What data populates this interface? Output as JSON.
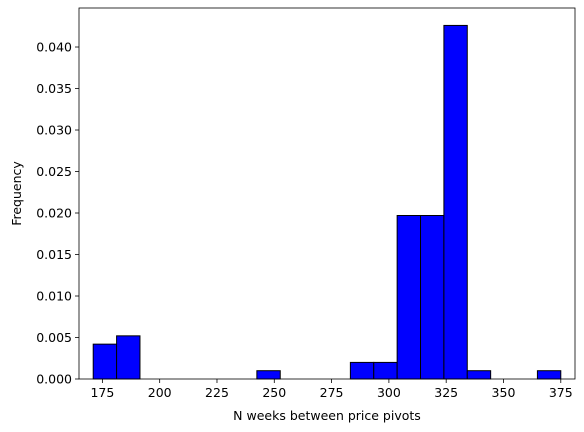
{
  "chart_data": {
    "type": "bar",
    "title": "",
    "xlabel": "N weeks between price pivots",
    "ylabel": "Frequency",
    "xlim": [
      164.8,
      381.2
    ],
    "ylim": [
      0,
      0.0447
    ],
    "x_ticks": [
      175,
      200,
      225,
      250,
      275,
      300,
      325,
      350,
      375
    ],
    "y_ticks": [
      0.0,
      0.005,
      0.01,
      0.015,
      0.02,
      0.025,
      0.03,
      0.035,
      0.04
    ],
    "y_tick_labels": [
      "0.000",
      "0.005",
      "0.010",
      "0.015",
      "0.020",
      "0.025",
      "0.030",
      "0.035",
      "0.040"
    ],
    "bin_edges": [
      171.0,
      181.2,
      191.4,
      201.6,
      211.8,
      222.0,
      232.2,
      242.4,
      252.6,
      262.8,
      273.0,
      283.2,
      293.4,
      303.6,
      313.8,
      324.0,
      334.2,
      344.4,
      354.6,
      364.8,
      375.0
    ],
    "values": [
      0.0042,
      0.0052,
      0,
      0,
      0,
      0,
      0,
      0.001,
      0,
      0,
      0,
      0.002,
      0.002,
      0.0197,
      0.0197,
      0.0426,
      0.001,
      0,
      0,
      0.001
    ],
    "bar_color": "#0000ff",
    "edge_color": "#000000",
    "grid": false
  }
}
